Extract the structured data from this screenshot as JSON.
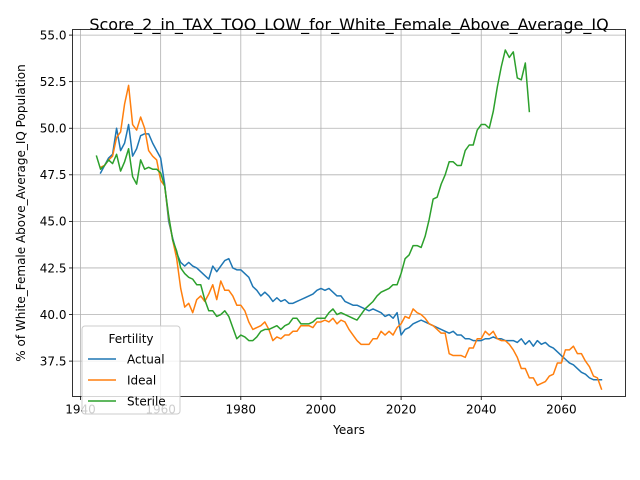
{
  "chart_data": {
    "type": "line",
    "title": "Score_2_in_TAX_TOO_LOW_for_White_Female_Above_Average_IQ",
    "xlabel": "Years",
    "ylabel": "% of White_Female Above_Average_IQ Population",
    "xlim": [
      1938,
      2076
    ],
    "ylim": [
      35.6,
      55.3
    ],
    "xticks": [
      1940,
      1960,
      1980,
      2000,
      2020,
      2040,
      2060
    ],
    "yticks": [
      37.5,
      40.0,
      42.5,
      45.0,
      47.5,
      50.0,
      52.5,
      55.0
    ],
    "xtick_labels": [
      "1940",
      "1960",
      "1980",
      "2000",
      "2020",
      "2040",
      "2060"
    ],
    "ytick_labels": [
      "37.5",
      "40.0",
      "42.5",
      "45.0",
      "47.5",
      "50.0",
      "52.5",
      "55.0"
    ],
    "grid": true,
    "legend": {
      "title": "Fertility",
      "position": "lower-left"
    },
    "series": [
      {
        "name": "Actual",
        "color": "#1f77b4",
        "x": [
          1945,
          1946,
          1947,
          1948,
          1949,
          1950,
          1951,
          1952,
          1953,
          1954,
          1955,
          1956,
          1957,
          1958,
          1959,
          1960,
          1961,
          1962,
          1963,
          1964,
          1965,
          1966,
          1967,
          1968,
          1969,
          1970,
          1971,
          1972,
          1973,
          1974,
          1975,
          1976,
          1977,
          1978,
          1979,
          1980,
          1981,
          1982,
          1983,
          1984,
          1985,
          1986,
          1987,
          1988,
          1989,
          1990,
          1991,
          1992,
          1993,
          1994,
          1995,
          1996,
          1997,
          1998,
          1999,
          2000,
          2001,
          2002,
          2003,
          2004,
          2005,
          2006,
          2007,
          2008,
          2009,
          2010,
          2011,
          2012,
          2013,
          2014,
          2015,
          2016,
          2017,
          2018,
          2019,
          2020,
          2021,
          2022,
          2023,
          2024,
          2025,
          2026,
          2027,
          2028,
          2029,
          2030,
          2031,
          2032,
          2033,
          2034,
          2035,
          2036,
          2037,
          2038,
          2039,
          2040,
          2041,
          2042,
          2043,
          2044,
          2045,
          2046,
          2047,
          2048,
          2049,
          2050,
          2051,
          2052,
          2053,
          2054,
          2055,
          2056,
          2057,
          2058,
          2059,
          2060,
          2061,
          2062,
          2063,
          2064,
          2065,
          2066,
          2067,
          2068,
          2069,
          2070
        ],
        "values": [
          47.6,
          48.0,
          48.4,
          48.6,
          50.0,
          48.8,
          49.2,
          50.2,
          48.5,
          48.9,
          49.6,
          49.7,
          49.7,
          49.2,
          48.8,
          48.4,
          47.0,
          45.0,
          44.1,
          43.3,
          42.8,
          42.6,
          42.8,
          42.6,
          42.5,
          42.3,
          42.1,
          41.9,
          42.6,
          42.3,
          42.6,
          42.9,
          43.0,
          42.5,
          42.4,
          42.4,
          42.2,
          42.0,
          41.5,
          41.3,
          41.0,
          41.2,
          41.0,
          40.7,
          40.9,
          40.7,
          40.8,
          40.6,
          40.6,
          40.7,
          40.8,
          40.9,
          41.0,
          41.1,
          41.3,
          41.4,
          41.3,
          41.4,
          41.2,
          41.0,
          41.0,
          40.7,
          40.6,
          40.5,
          40.5,
          40.4,
          40.3,
          40.2,
          40.3,
          40.2,
          40.1,
          39.9,
          40.0,
          39.8,
          40.1,
          38.9,
          39.2,
          39.3,
          39.5,
          39.6,
          39.7,
          39.6,
          39.5,
          39.4,
          39.3,
          39.2,
          39.1,
          39.0,
          39.1,
          38.9,
          38.9,
          38.7,
          38.7,
          38.6,
          38.6,
          38.6,
          38.7,
          38.7,
          38.8,
          38.7,
          38.7,
          38.6,
          38.6,
          38.6,
          38.5,
          38.7,
          38.4,
          38.6,
          38.3,
          38.6,
          38.4,
          38.5,
          38.3,
          38.2,
          38.0,
          37.8,
          37.6,
          37.4,
          37.3,
          37.1,
          36.9,
          36.8,
          36.6,
          36.5,
          36.5,
          36.5
        ],
        "label": "Actual"
      },
      {
        "name": "Ideal",
        "color": "#ff7f0e",
        "x": [
          1945,
          1946,
          1947,
          1948,
          1949,
          1950,
          1951,
          1952,
          1953,
          1954,
          1955,
          1956,
          1957,
          1958,
          1959,
          1960,
          1961,
          1962,
          1963,
          1964,
          1965,
          1966,
          1967,
          1968,
          1969,
          1970,
          1971,
          1972,
          1973,
          1974,
          1975,
          1976,
          1977,
          1978,
          1979,
          1980,
          1981,
          1982,
          1983,
          1984,
          1985,
          1986,
          1987,
          1988,
          1989,
          1990,
          1991,
          1992,
          1993,
          1994,
          1995,
          1996,
          1997,
          1998,
          1999,
          2000,
          2001,
          2002,
          2003,
          2004,
          2005,
          2006,
          2007,
          2008,
          2009,
          2010,
          2011,
          2012,
          2013,
          2014,
          2015,
          2016,
          2017,
          2018,
          2019,
          2020,
          2021,
          2022,
          2023,
          2024,
          2025,
          2026,
          2027,
          2028,
          2029,
          2030,
          2031,
          2032,
          2033,
          2034,
          2035,
          2036,
          2037,
          2038,
          2039,
          2040,
          2041,
          2042,
          2043,
          2044,
          2045,
          2046,
          2047,
          2048,
          2049,
          2050,
          2051,
          2052,
          2053,
          2054,
          2055,
          2056,
          2057,
          2058,
          2059,
          2060,
          2061,
          2062,
          2063,
          2064,
          2065,
          2066,
          2067,
          2068,
          2069,
          2070
        ],
        "values": [
          47.9,
          48.0,
          48.3,
          48.5,
          49.5,
          49.8,
          51.3,
          52.3,
          50.2,
          49.9,
          50.6,
          50.0,
          48.8,
          48.5,
          48.3,
          47.2,
          46.9,
          45.2,
          44.0,
          43.0,
          41.4,
          40.4,
          40.6,
          40.1,
          40.8,
          41.0,
          40.7,
          41.1,
          41.6,
          40.8,
          41.8,
          41.3,
          41.3,
          41.0,
          40.5,
          40.5,
          40.2,
          39.6,
          39.2,
          39.3,
          39.4,
          39.6,
          39.2,
          38.6,
          38.8,
          38.7,
          38.9,
          38.9,
          39.1,
          39.1,
          39.4,
          39.4,
          39.4,
          39.3,
          39.6,
          39.6,
          39.7,
          39.6,
          39.8,
          39.5,
          39.7,
          39.6,
          39.2,
          38.9,
          38.6,
          38.4,
          38.4,
          38.4,
          38.7,
          38.7,
          39.1,
          38.9,
          39.1,
          38.9,
          39.3,
          39.5,
          39.9,
          39.8,
          40.3,
          40.1,
          40.0,
          39.8,
          39.5,
          39.4,
          39.2,
          39.0,
          39.0,
          37.9,
          37.8,
          37.8,
          37.8,
          37.7,
          38.2,
          38.2,
          38.7,
          38.7,
          39.1,
          38.9,
          39.1,
          38.7,
          38.6,
          38.6,
          38.4,
          38.1,
          37.7,
          37.1,
          37.1,
          36.6,
          36.6,
          36.2,
          36.3,
          36.4,
          36.7,
          36.8,
          37.4,
          37.4,
          38.1,
          38.1,
          38.3,
          37.9,
          37.9,
          37.5,
          37.2,
          36.7,
          36.6,
          36.0
        ],
        "label": "Ideal"
      },
      {
        "name": "Sterile",
        "color": "#2ca02c",
        "x": [
          1944,
          1945,
          1946,
          1947,
          1948,
          1949,
          1950,
          1951,
          1952,
          1953,
          1954,
          1955,
          1956,
          1957,
          1958,
          1959,
          1960,
          1961,
          1962,
          1963,
          1964,
          1965,
          1966,
          1967,
          1968,
          1969,
          1970,
          1971,
          1972,
          1973,
          1974,
          1975,
          1976,
          1977,
          1978,
          1979,
          1980,
          1981,
          1982,
          1983,
          1984,
          1985,
          1986,
          1987,
          1988,
          1989,
          1990,
          1991,
          1992,
          1993,
          1994,
          1995,
          1996,
          1997,
          1998,
          1999,
          2000,
          2001,
          2002,
          2003,
          2004,
          2005,
          2006,
          2007,
          2008,
          2009,
          2010,
          2011,
          2012,
          2013,
          2014,
          2015,
          2016,
          2017,
          2018,
          2019,
          2020,
          2021,
          2022,
          2023,
          2024,
          2025,
          2026,
          2027,
          2028,
          2029,
          2030,
          2031,
          2032,
          2033,
          2034,
          2035,
          2036,
          2037,
          2038,
          2039,
          2040,
          2041,
          2042,
          2043,
          2044,
          2045,
          2046,
          2047,
          2048,
          2049,
          2050,
          2051,
          2052
        ],
        "values": [
          48.5,
          47.8,
          48.0,
          48.3,
          48.1,
          48.6,
          47.7,
          48.2,
          48.9,
          47.4,
          47.0,
          48.3,
          47.8,
          47.9,
          47.8,
          47.8,
          47.6,
          46.9,
          45.3,
          44.0,
          43.4,
          42.5,
          42.2,
          42.0,
          41.9,
          41.6,
          41.6,
          40.8,
          40.2,
          40.2,
          39.9,
          40.0,
          40.2,
          39.9,
          39.3,
          38.7,
          38.9,
          38.8,
          38.6,
          38.6,
          38.8,
          39.1,
          39.2,
          39.2,
          39.3,
          39.4,
          39.2,
          39.4,
          39.5,
          39.8,
          39.8,
          39.5,
          39.5,
          39.5,
          39.6,
          39.8,
          39.8,
          39.8,
          40.1,
          40.3,
          40.0,
          40.1,
          40.0,
          39.9,
          39.8,
          39.7,
          40.0,
          40.3,
          40.5,
          40.7,
          41.0,
          41.2,
          41.3,
          41.4,
          41.6,
          41.6,
          42.2,
          43.0,
          43.2,
          43.7,
          43.7,
          43.6,
          44.2,
          45.1,
          46.2,
          46.3,
          47.0,
          47.5,
          48.2,
          48.2,
          48.0,
          48.0,
          48.8,
          49.1,
          49.1,
          49.9,
          50.2,
          50.2,
          50.0,
          50.9,
          52.2,
          53.3,
          54.2,
          53.8,
          54.1,
          52.7,
          52.6,
          53.5,
          50.9
        ],
        "label": "Sterile"
      }
    ]
  }
}
